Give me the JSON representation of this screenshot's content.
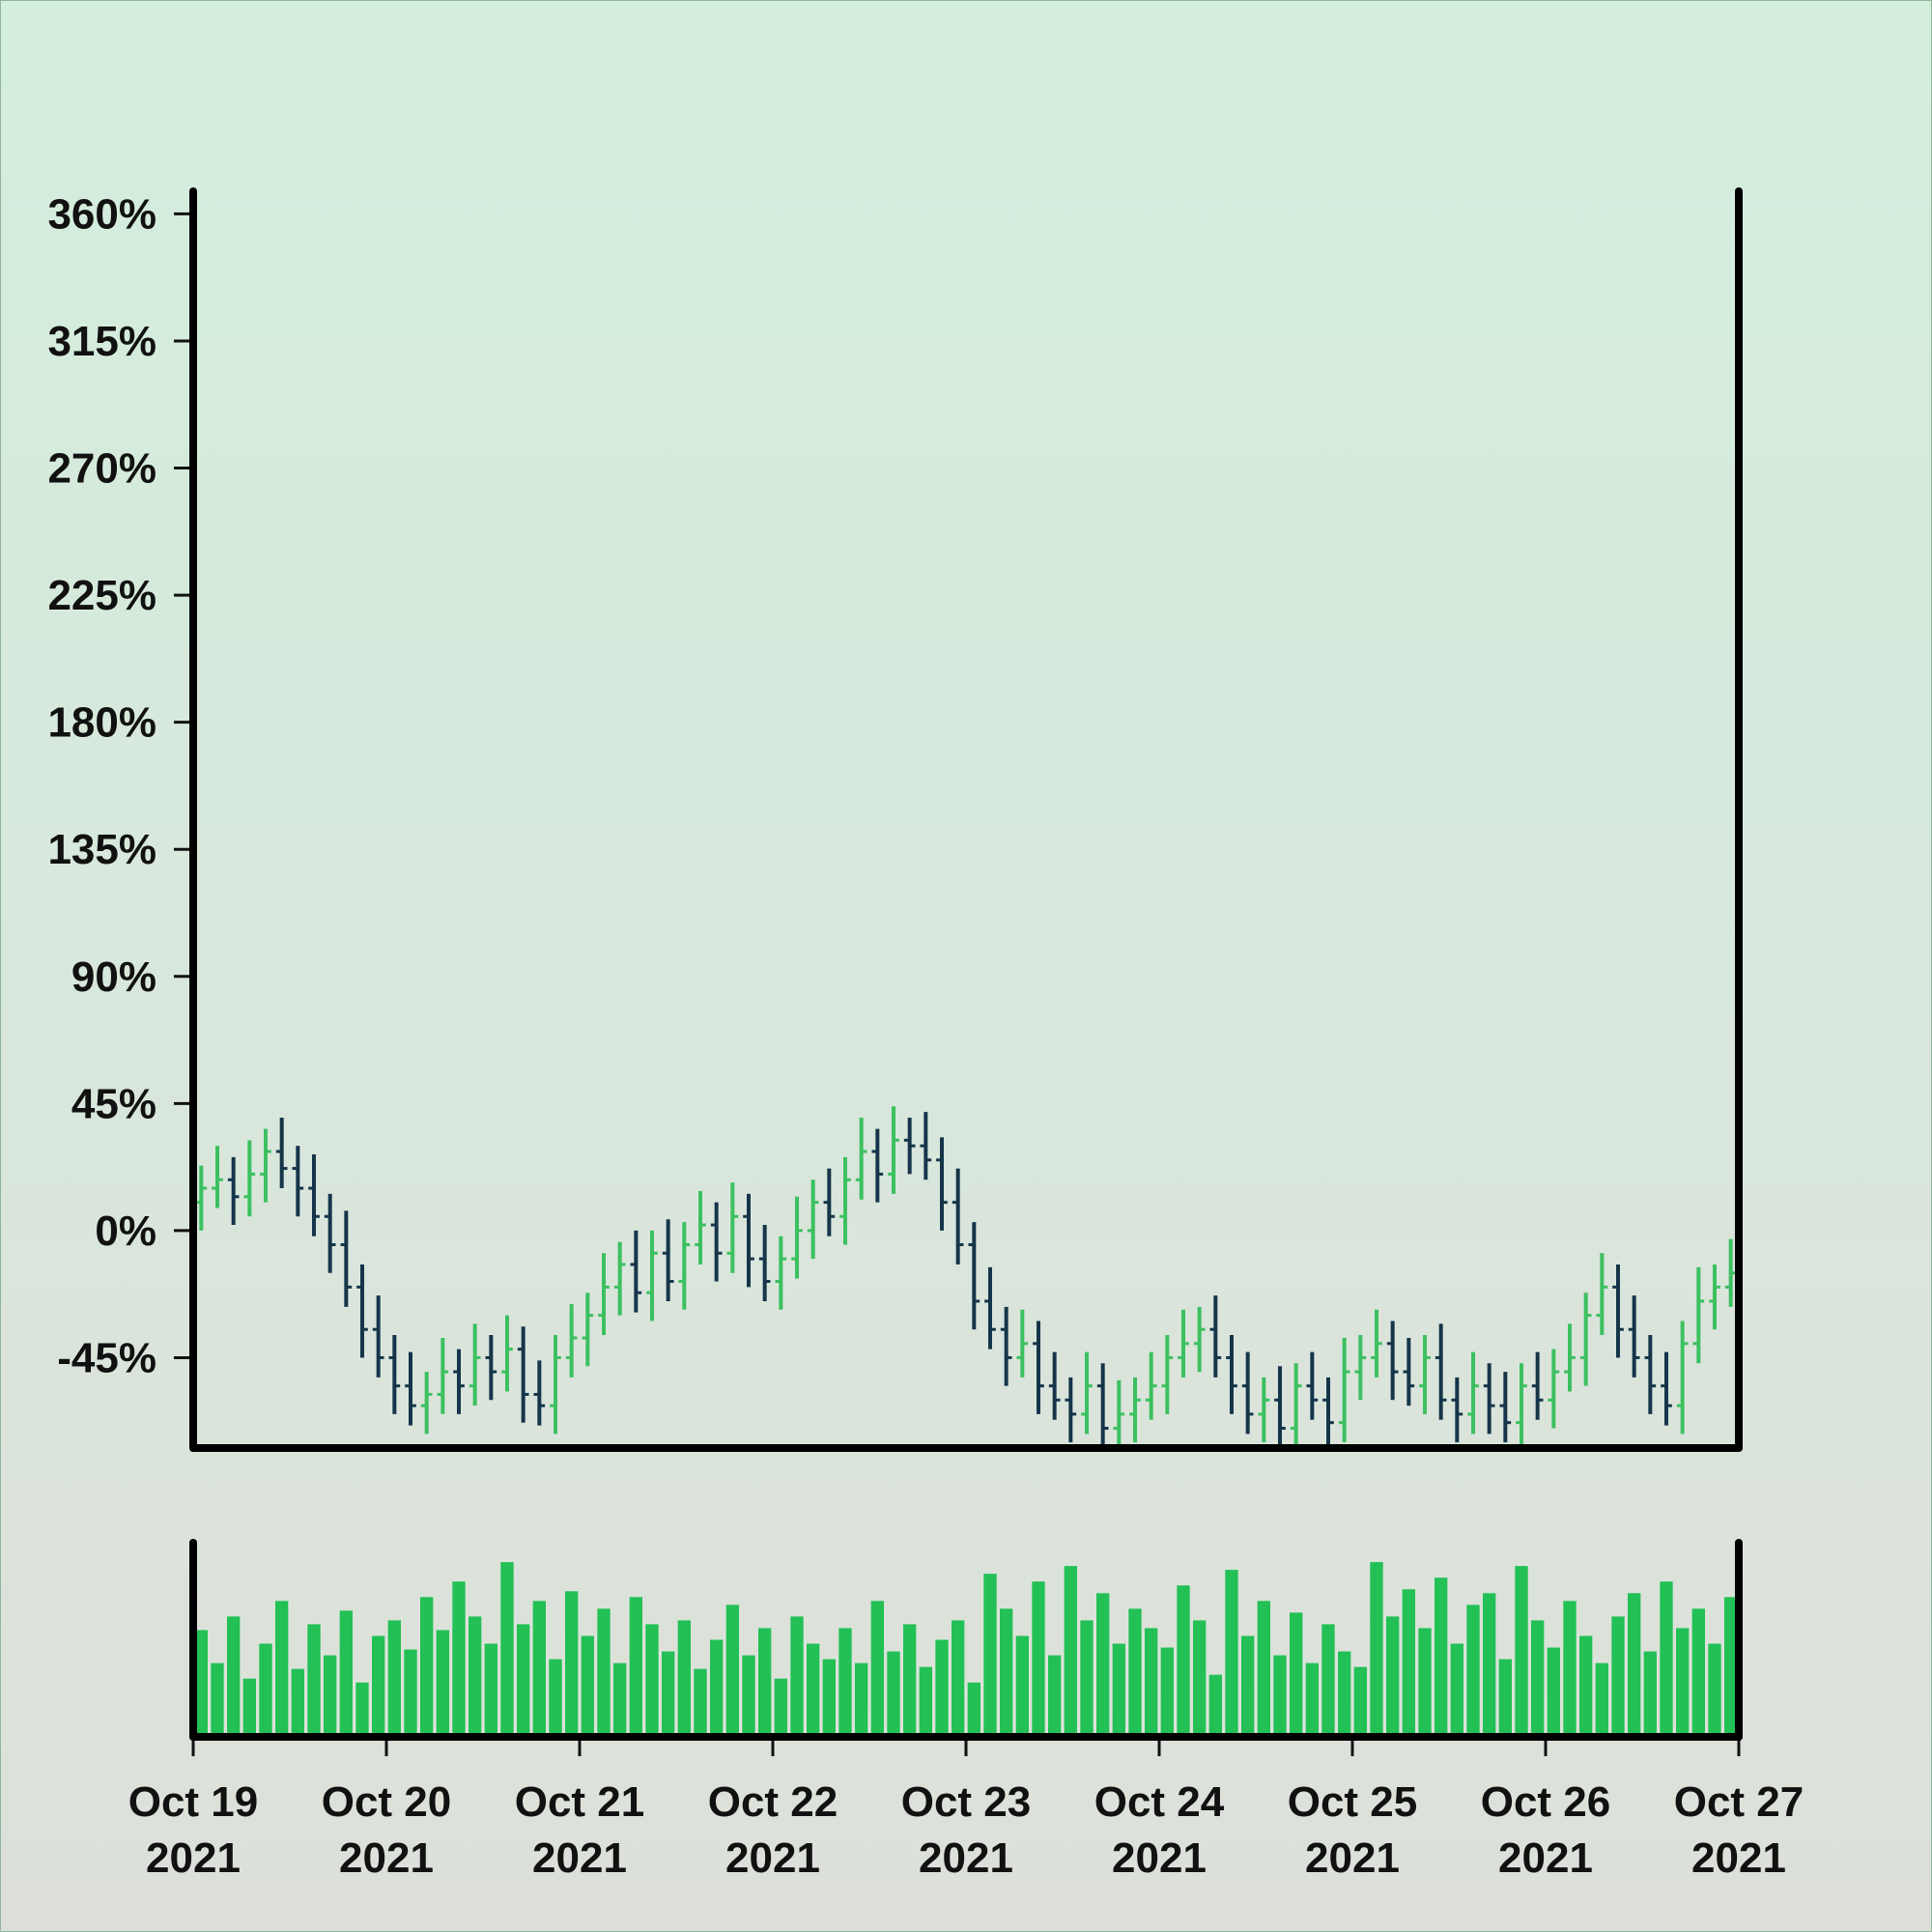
{
  "chart_data": {
    "type": "ohlc",
    "xlim": [
      "2021-10-19",
      "2021-10-27"
    ],
    "xticks": [
      {
        "value": "2021-10-19",
        "label": "Oct 19\n2021"
      },
      {
        "value": "2021-10-20",
        "label": "Oct 20\n2021"
      },
      {
        "value": "2021-10-21",
        "label": "Oct 21\n2021"
      },
      {
        "value": "2021-10-22",
        "label": "Oct 22\n2021"
      },
      {
        "value": "2021-10-23",
        "label": "Oct 23\n2021"
      },
      {
        "value": "2021-10-24",
        "label": "Oct 24\n2021"
      },
      {
        "value": "2021-10-25",
        "label": "Oct 25\n2021"
      },
      {
        "value": "2021-10-26",
        "label": "Oct 26\n2021"
      },
      {
        "value": "2021-10-27",
        "label": "Oct 27\n2021"
      }
    ],
    "ylim": [
      -77,
      368
    ],
    "yticks": [
      {
        "value": -45,
        "label": "-45%"
      },
      {
        "value": 0,
        "label": "0%"
      },
      {
        "value": 45,
        "label": "45%"
      },
      {
        "value": 90,
        "label": "90%"
      },
      {
        "value": 135,
        "label": "135%"
      },
      {
        "value": 180,
        "label": "180%"
      },
      {
        "value": 225,
        "label": "225%"
      },
      {
        "value": 270,
        "label": "270%"
      },
      {
        "value": 315,
        "label": "315%"
      },
      {
        "value": 360,
        "label": "360%"
      }
    ],
    "up_color": "#3cc060",
    "down_color": "#15354a",
    "open": [
      10,
      15,
      18,
      12,
      20,
      28,
      22,
      15,
      5,
      -5,
      -20,
      -35,
      -45,
      -55,
      -62,
      -58,
      -50,
      -55,
      -45,
      -50,
      -42,
      -58,
      -62,
      -45,
      -38,
      -30,
      -20,
      -12,
      -22,
      -8,
      -18,
      -5,
      2,
      -8,
      5,
      -10,
      -18,
      -10,
      0,
      10,
      5,
      18,
      28,
      20,
      32,
      30,
      25,
      10,
      -5,
      -25,
      -35,
      -45,
      -40,
      -55,
      -60,
      -65,
      -55,
      -70,
      -65,
      -60,
      -55,
      -45,
      -40,
      -35,
      -45,
      -55,
      -65,
      -60,
      -70,
      -55,
      -60,
      -68,
      -50,
      -45,
      -40,
      -50,
      -55,
      -45,
      -60,
      -65,
      -55,
      -62,
      -68,
      -55,
      -60,
      -50,
      -45,
      -30,
      -20,
      -35,
      -45,
      -55,
      -62,
      -40,
      -25,
      -20
    ],
    "high": [
      23,
      30,
      26,
      32,
      36,
      40,
      30,
      27,
      13,
      7,
      -12,
      -23,
      -37,
      -43,
      -50,
      -38,
      -42,
      -33,
      -37,
      -30,
      -34,
      -46,
      -37,
      -26,
      -22,
      -8,
      -4,
      0,
      0,
      4,
      3,
      14,
      10,
      17,
      13,
      2,
      -2,
      12,
      18,
      22,
      26,
      40,
      36,
      44,
      40,
      42,
      33,
      22,
      3,
      -13,
      -27,
      -28,
      -32,
      -43,
      -52,
      -43,
      -47,
      -53,
      -52,
      -43,
      -37,
      -28,
      -27,
      -23,
      -37,
      -43,
      -52,
      -48,
      -47,
      -43,
      -52,
      -38,
      -37,
      -28,
      -32,
      -38,
      -37,
      -33,
      -52,
      -43,
      -47,
      -50,
      -47,
      -43,
      -42,
      -33,
      -22,
      -8,
      -12,
      -23,
      -37,
      -43,
      -32,
      -13,
      -12,
      -3
    ],
    "low": [
      0,
      8,
      2,
      5,
      10,
      15,
      5,
      -2,
      -15,
      -27,
      -45,
      -52,
      -65,
      -69,
      -72,
      -65,
      -65,
      -62,
      -60,
      -57,
      -68,
      -69,
      -72,
      -52,
      -48,
      -37,
      -30,
      -29,
      -32,
      -25,
      -28,
      -12,
      -18,
      -15,
      -20,
      -25,
      -28,
      -17,
      -10,
      -2,
      -5,
      11,
      10,
      13,
      20,
      18,
      0,
      -12,
      -35,
      -42,
      -55,
      -52,
      -65,
      -67,
      -75,
      -72,
      -80,
      -77,
      -75,
      -67,
      -65,
      -52,
      -50,
      -52,
      -65,
      -72,
      -75,
      -77,
      -80,
      -67,
      -78,
      -75,
      -60,
      -52,
      -60,
      -62,
      -65,
      -67,
      -75,
      -72,
      -72,
      -75,
      -78,
      -67,
      -70,
      -57,
      -55,
      -37,
      -45,
      -52,
      -65,
      -69,
      -72,
      -47,
      -35,
      -27
    ],
    "close": [
      15,
      18,
      12,
      20,
      28,
      22,
      15,
      5,
      -5,
      -20,
      -35,
      -45,
      -55,
      -62,
      -58,
      -50,
      -55,
      -45,
      -50,
      -42,
      -58,
      -62,
      -45,
      -38,
      -30,
      -20,
      -12,
      -22,
      -8,
      -18,
      -5,
      2,
      -8,
      5,
      -10,
      -18,
      -10,
      0,
      10,
      5,
      18,
      28,
      20,
      32,
      30,
      25,
      10,
      -5,
      -25,
      -35,
      -45,
      -40,
      -55,
      -60,
      -65,
      -55,
      -70,
      -65,
      -60,
      -55,
      -45,
      -40,
      -35,
      -45,
      -55,
      -65,
      -60,
      -70,
      -55,
      -60,
      -68,
      -50,
      -45,
      -40,
      -50,
      -55,
      -45,
      -60,
      -65,
      -55,
      -62,
      -68,
      -55,
      -60,
      -50,
      -45,
      -30,
      -20,
      -35,
      -45,
      -55,
      -62,
      -40,
      -25,
      -20,
      -15
    ],
    "volume": {
      "color": "#22c055",
      "ylim": [
        0,
        100
      ],
      "values": [
        55,
        38,
        62,
        30,
        48,
        70,
        35,
        58,
        42,
        65,
        28,
        52,
        60,
        45,
        72,
        55,
        80,
        62,
        48,
        90,
        58,
        70,
        40,
        75,
        52,
        66,
        38,
        72,
        58,
        44,
        60,
        35,
        50,
        68,
        42,
        56,
        30,
        62,
        48,
        40,
        56,
        38,
        70,
        44,
        58,
        36,
        50,
        60,
        28,
        84,
        66,
        52,
        80,
        42,
        88,
        60,
        74,
        48,
        66,
        56,
        46,
        78,
        60,
        32,
        86,
        52,
        70,
        42,
        64,
        38,
        58,
        44,
        36,
        90,
        62,
        76,
        56,
        82,
        48,
        68,
        74,
        40,
        88,
        60,
        46,
        70,
        52,
        38,
        62,
        74,
        44,
        80,
        56,
        66,
        48,
        72
      ]
    }
  }
}
